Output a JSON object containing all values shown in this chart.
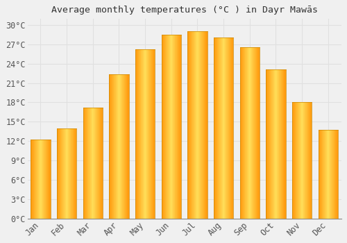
{
  "months": [
    "Jan",
    "Feb",
    "Mar",
    "Apr",
    "May",
    "Jun",
    "Jul",
    "Aug",
    "Sep",
    "Oct",
    "Nov",
    "Dec"
  ],
  "values": [
    12.2,
    14.0,
    17.2,
    22.3,
    26.2,
    28.5,
    29.0,
    28.1,
    26.5,
    23.1,
    18.0,
    13.7
  ],
  "bar_color_main": "#FFA500",
  "bar_color_light": "#FFD966",
  "title": "Average monthly temperatures (°C ) in Dayr Mawās",
  "ylim": [
    0,
    31
  ],
  "ytick_values": [
    0,
    3,
    6,
    9,
    12,
    15,
    18,
    21,
    24,
    27,
    30
  ],
  "background_color": "#f0f0f0",
  "grid_color": "#e0e0e0",
  "title_fontsize": 9.5,
  "tick_fontsize": 8.5
}
